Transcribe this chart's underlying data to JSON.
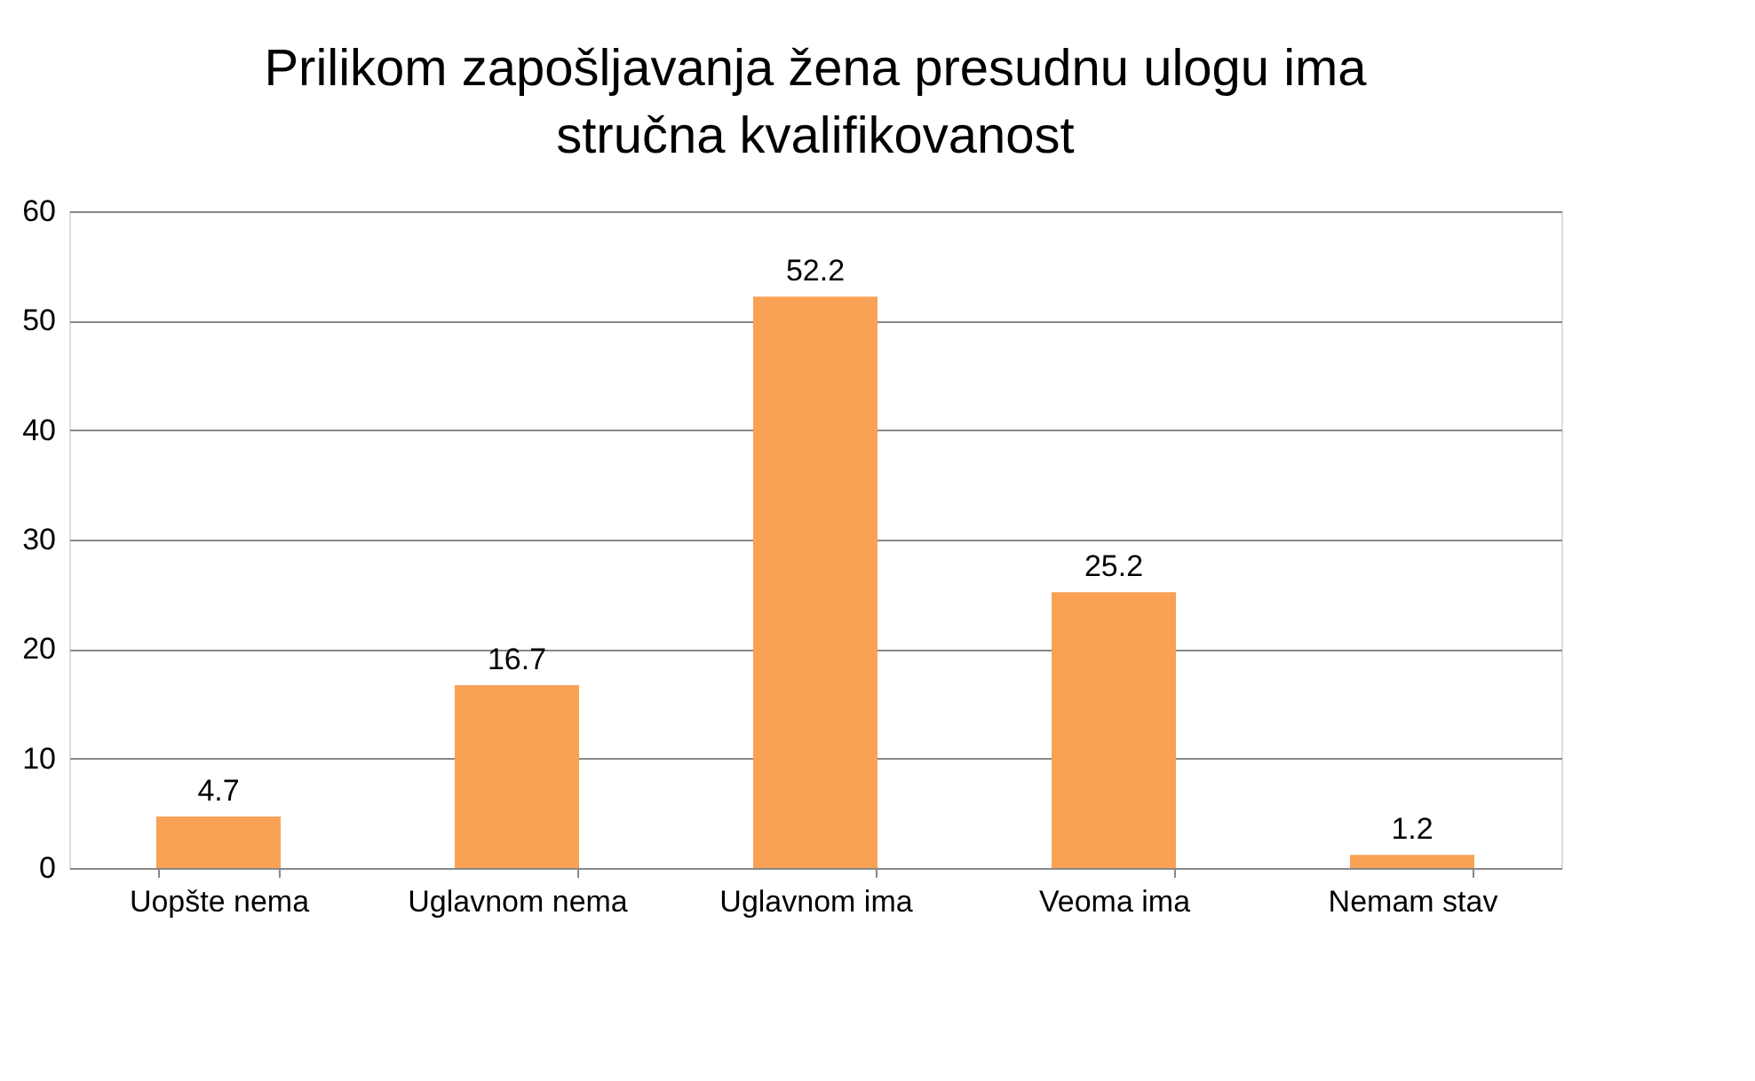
{
  "chart_data": {
    "type": "bar",
    "title": "Prilikom zapošljavanja žena presudnu ulogu ima stručna kvalifikovanost",
    "categories": [
      "Uopšte nema",
      "Uglavnom nema",
      "Uglavnom ima",
      "Veoma ima",
      "Nemam stav"
    ],
    "values": [
      4.7,
      16.7,
      52.2,
      25.2,
      1.2
    ],
    "color": "#f9a155",
    "ylim": [
      0,
      60
    ],
    "yticks": [
      0,
      10,
      20,
      30,
      40,
      50,
      60
    ],
    "grid": "y",
    "data_labels": true
  }
}
